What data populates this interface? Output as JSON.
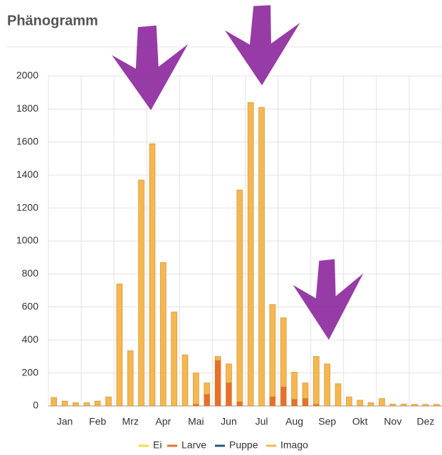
{
  "chart_data": {
    "type": "bar",
    "stacked": true,
    "title": "Phänogramm",
    "categories": [
      null,
      "Jan",
      null,
      null,
      "Feb",
      null,
      null,
      "Mrz",
      null,
      null,
      "Apr",
      null,
      null,
      "Mai",
      null,
      null,
      "Jun",
      null,
      null,
      "Jul",
      null,
      null,
      "Aug",
      null,
      null,
      "Sep",
      null,
      null,
      "Okt",
      null,
      null,
      "Nov",
      null,
      null,
      "Dez",
      null
    ],
    "series": [
      {
        "name": "Ei",
        "color": "#f2e03a",
        "values": [
          0,
          0,
          0,
          0,
          0,
          0,
          0,
          0,
          0,
          0,
          0,
          0,
          0,
          0,
          0,
          0,
          0,
          0,
          0,
          0,
          0,
          0,
          0,
          0,
          0,
          0,
          0,
          0,
          0,
          0,
          0,
          0,
          0,
          0,
          0,
          0
        ]
      },
      {
        "name": "Larve",
        "color": "#e8702a",
        "values": [
          0,
          0,
          0,
          0,
          0,
          0,
          0,
          0,
          0,
          0,
          0,
          0,
          0,
          10,
          70,
          275,
          140,
          25,
          0,
          0,
          55,
          115,
          40,
          45,
          10,
          0,
          0,
          0,
          0,
          0,
          0,
          0,
          0,
          0,
          0,
          0
        ]
      },
      {
        "name": "Puppe",
        "color": "#1f5a82",
        "values": [
          0,
          0,
          0,
          0,
          0,
          0,
          0,
          0,
          0,
          0,
          0,
          0,
          0,
          0,
          0,
          0,
          0,
          0,
          0,
          0,
          0,
          0,
          0,
          0,
          0,
          0,
          0,
          0,
          0,
          0,
          0,
          0,
          0,
          0,
          0,
          0
        ]
      },
      {
        "name": "Imago",
        "color": "#f5b74f",
        "values": [
          52,
          30,
          20,
          20,
          30,
          55,
          740,
          335,
          1370,
          1590,
          870,
          570,
          310,
          190,
          70,
          25,
          115,
          1285,
          1840,
          1810,
          560,
          420,
          165,
          95,
          290,
          255,
          135,
          55,
          35,
          20,
          45,
          12,
          12,
          10,
          10,
          10
        ]
      }
    ],
    "ylim": [
      0,
      2000
    ],
    "yticks": [
      0,
      200,
      400,
      600,
      800,
      1000,
      1200,
      1400,
      1600,
      1800,
      2000
    ],
    "grid": true
  }
}
